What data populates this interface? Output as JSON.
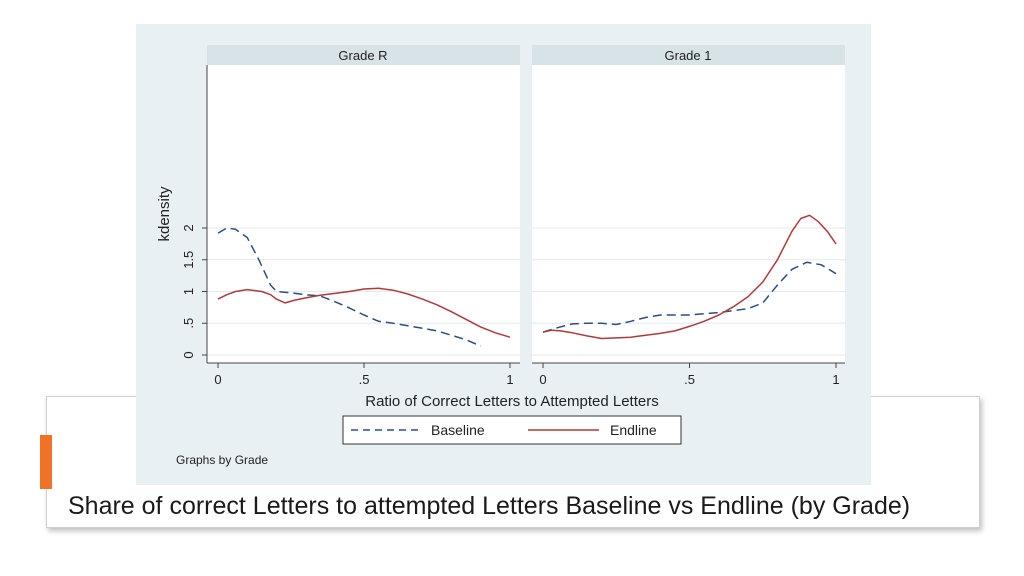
{
  "caption": "Share of correct Letters to attempted Letters Baseline vs Endline (by Grade)",
  "note": "Graphs by Grade",
  "colors": {
    "baseline": "#2b4f80",
    "endline": "#b03a3a",
    "accent": "#ee7326"
  },
  "chart_data": {
    "type": "line",
    "title": "",
    "xlabel": "Ratio of Correct Letters to Attempted Letters",
    "ylabel": "kdensity",
    "xlim": [
      0,
      1
    ],
    "ylim": [
      0,
      2.2
    ],
    "xticks": [
      0,
      0.5,
      1
    ],
    "xtick_labels": [
      "0",
      ".5",
      "1"
    ],
    "yticks": [
      0,
      0.5,
      1,
      1.5,
      2
    ],
    "ytick_labels": [
      "0",
      ".5",
      "1",
      "1.5",
      "2"
    ],
    "grid": true,
    "legend": {
      "placement": "bottom",
      "entries": [
        "Baseline",
        "Endline"
      ]
    },
    "panels": [
      {
        "name": "Grade R",
        "series": [
          {
            "name": "Baseline",
            "style": "dashed",
            "x": [
              0,
              0.03,
              0.06,
              0.1,
              0.14,
              0.18,
              0.2,
              0.25,
              0.3,
              0.35,
              0.4,
              0.45,
              0.5,
              0.55,
              0.6,
              0.65,
              0.7,
              0.75,
              0.8,
              0.85,
              0.9
            ],
            "y": [
              1.92,
              2.0,
              1.98,
              1.85,
              1.5,
              1.1,
              1.0,
              0.98,
              0.95,
              0.93,
              0.84,
              0.74,
              0.63,
              0.53,
              0.5,
              0.46,
              0.42,
              0.38,
              0.31,
              0.24,
              0.14
            ]
          },
          {
            "name": "Endline",
            "style": "solid",
            "x": [
              0,
              0.03,
              0.06,
              0.1,
              0.15,
              0.18,
              0.2,
              0.23,
              0.26,
              0.3,
              0.35,
              0.4,
              0.45,
              0.5,
              0.55,
              0.6,
              0.65,
              0.7,
              0.75,
              0.8,
              0.85,
              0.9,
              0.95,
              1.0
            ],
            "y": [
              0.88,
              0.95,
              1.0,
              1.03,
              1.0,
              0.95,
              0.88,
              0.82,
              0.86,
              0.9,
              0.94,
              0.97,
              1.0,
              1.04,
              1.05,
              1.02,
              0.96,
              0.88,
              0.79,
              0.68,
              0.56,
              0.44,
              0.35,
              0.28
            ]
          }
        ]
      },
      {
        "name": "Grade 1",
        "series": [
          {
            "name": "Baseline",
            "style": "dashed",
            "x": [
              0,
              0.05,
              0.1,
              0.15,
              0.2,
              0.25,
              0.3,
              0.35,
              0.4,
              0.45,
              0.5,
              0.55,
              0.6,
              0.65,
              0.7,
              0.75,
              0.8,
              0.85,
              0.9,
              0.95,
              1.0
            ],
            "y": [
              0.36,
              0.43,
              0.49,
              0.5,
              0.5,
              0.48,
              0.53,
              0.59,
              0.63,
              0.63,
              0.63,
              0.65,
              0.67,
              0.7,
              0.73,
              0.82,
              1.1,
              1.35,
              1.46,
              1.42,
              1.28
            ]
          },
          {
            "name": "Endline",
            "style": "solid",
            "x": [
              0,
              0.03,
              0.06,
              0.1,
              0.15,
              0.2,
              0.25,
              0.3,
              0.35,
              0.4,
              0.45,
              0.5,
              0.55,
              0.6,
              0.65,
              0.7,
              0.75,
              0.8,
              0.85,
              0.88,
              0.91,
              0.94,
              0.97,
              1.0
            ],
            "y": [
              0.36,
              0.39,
              0.38,
              0.35,
              0.3,
              0.26,
              0.27,
              0.28,
              0.31,
              0.34,
              0.38,
              0.45,
              0.53,
              0.63,
              0.76,
              0.92,
              1.15,
              1.5,
              1.95,
              2.15,
              2.2,
              2.1,
              1.95,
              1.75
            ]
          }
        ]
      }
    ]
  }
}
